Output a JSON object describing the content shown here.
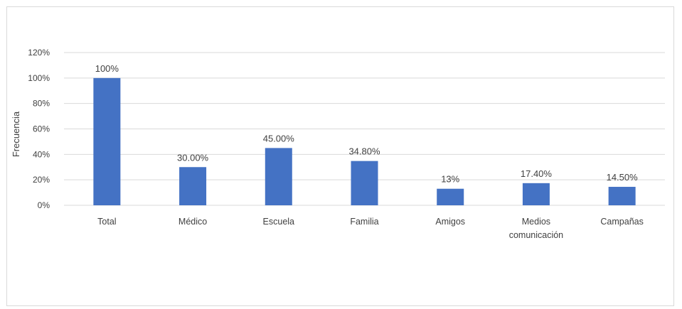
{
  "chart_data": {
    "type": "bar",
    "title": "",
    "xlabel": "",
    "ylabel": "Frecuencia",
    "ylim": [
      0,
      1.2
    ],
    "yticks": [
      {
        "value": 0,
        "label": "0%"
      },
      {
        "value": 0.2,
        "label": "20%"
      },
      {
        "value": 0.4,
        "label": "40%"
      },
      {
        "value": 0.6,
        "label": "60%"
      },
      {
        "value": 0.8,
        "label": "80%"
      },
      {
        "value": 1.0,
        "label": "100%"
      },
      {
        "value": 1.2,
        "label": "120%"
      }
    ],
    "grid": true,
    "legend": "none",
    "bar_color": "#4472C4",
    "categories": [
      [
        "Total"
      ],
      [
        "Médico"
      ],
      [
        "Escuela"
      ],
      [
        "Familia"
      ],
      [
        "Amigos"
      ],
      [
        "Medios",
        "comunicación"
      ],
      [
        "Campañas"
      ]
    ],
    "values": [
      1.0,
      0.3,
      0.45,
      0.348,
      0.13,
      0.174,
      0.145
    ],
    "data_labels": [
      "100%",
      "30.00%",
      "45.00%",
      "34.80%",
      "13%",
      "17.40%",
      "14.50%"
    ]
  }
}
